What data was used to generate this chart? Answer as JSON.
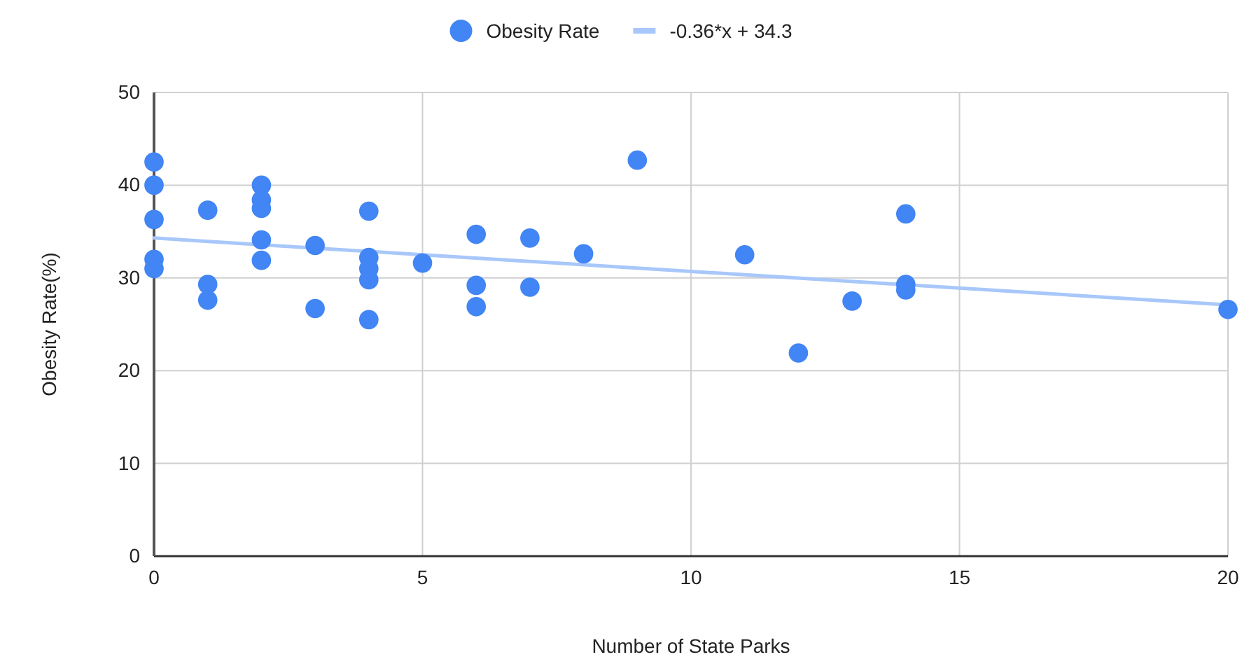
{
  "chart_data": {
    "type": "scatter",
    "xlabel": "Number of State Parks",
    "ylabel": "Obesity Rate(%)",
    "xlim": [
      0,
      20
    ],
    "ylim": [
      0,
      50
    ],
    "xticks": [
      0,
      5,
      10,
      15,
      20
    ],
    "yticks": [
      0,
      10,
      20,
      30,
      40,
      50
    ],
    "grid": true,
    "legend": "top",
    "series": [
      {
        "name": "Obesity Rate",
        "color": "#4285f4",
        "marker": "circle",
        "x": [
          0,
          0,
          0,
          0,
          0,
          1,
          1,
          1,
          2,
          2,
          2,
          2,
          2,
          3,
          3,
          4,
          4,
          4,
          4,
          4,
          5,
          6,
          6,
          6,
          7,
          7,
          8,
          9,
          11,
          12,
          13,
          14,
          14,
          14,
          20
        ],
        "values": [
          42.5,
          40,
          36.3,
          32,
          31,
          37.3,
          29.3,
          27.6,
          40,
          38.4,
          37.5,
          34.1,
          31.9,
          33.5,
          26.7,
          37.2,
          32.2,
          31,
          29.8,
          25.5,
          31.6,
          34.7,
          29.2,
          26.9,
          34.3,
          29,
          32.6,
          42.7,
          32.5,
          21.9,
          27.5,
          36.9,
          29.3,
          28.7,
          26.6
        ]
      },
      {
        "name": "-0.36*x + 34.3",
        "type": "line",
        "color": "#a8c7fa",
        "x": [
          0,
          20
        ],
        "values": [
          34.3,
          27.1
        ]
      }
    ]
  }
}
